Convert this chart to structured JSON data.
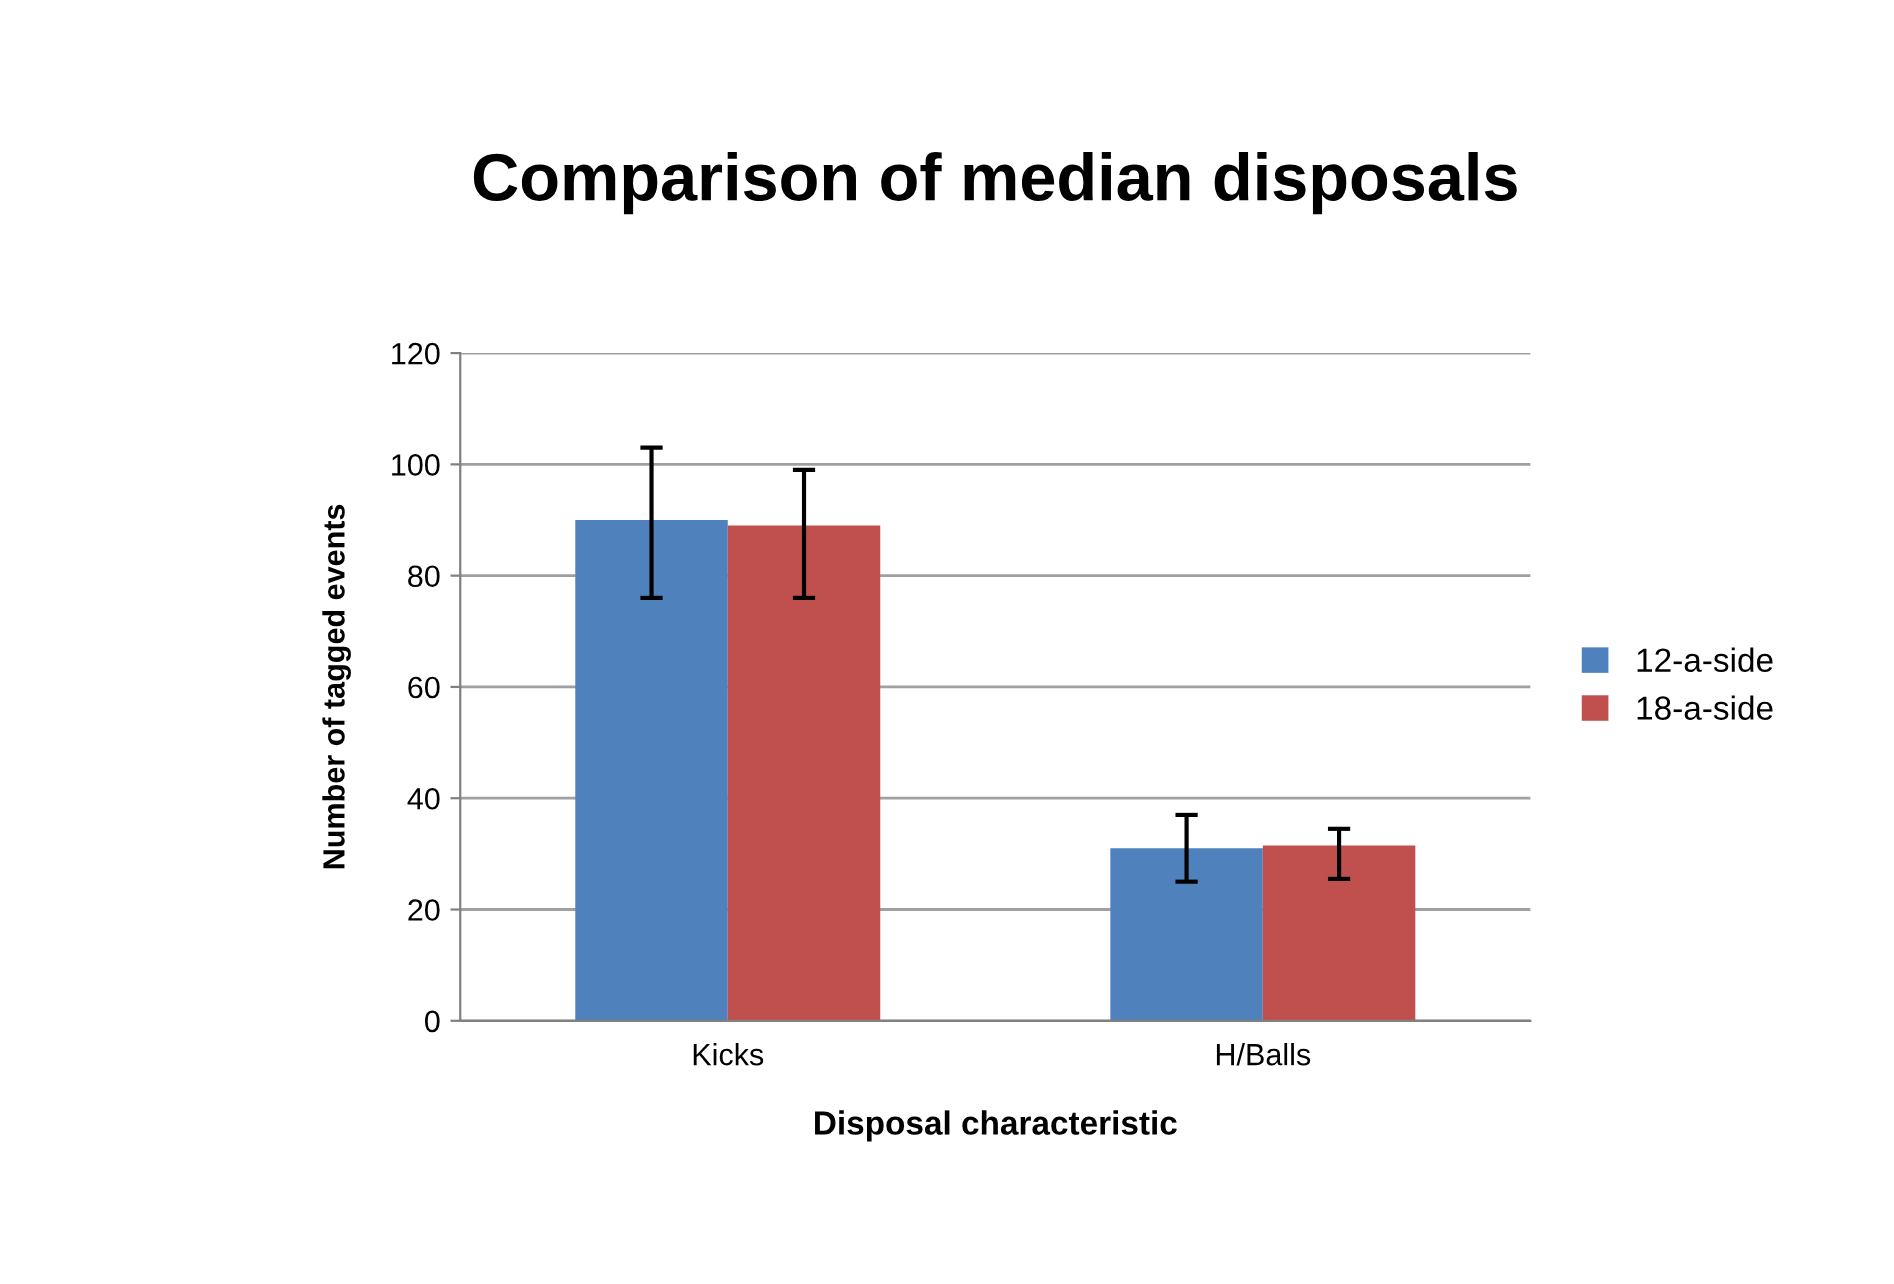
{
  "chart_data": {
    "type": "bar",
    "title": "Comparison of median disposals",
    "xlabel": "Disposal characteristic",
    "ylabel": "Number of tagged events",
    "categories": [
      "Kicks",
      "H/Balls"
    ],
    "series": [
      {
        "name": "12-a-side",
        "color": "#4f81bd",
        "values": [
          90,
          31
        ],
        "errors": [
          [
            76,
            103
          ],
          [
            25,
            37
          ]
        ]
      },
      {
        "name": "18-a-side",
        "color": "#c0504d",
        "values": [
          89,
          31.5
        ],
        "errors": [
          [
            76,
            99
          ],
          [
            25.5,
            34.5
          ]
        ]
      }
    ],
    "ylim": [
      0,
      120
    ],
    "yticks": [
      0,
      20,
      40,
      60,
      80,
      100,
      120
    ],
    "grid": "y",
    "legend": "right"
  }
}
